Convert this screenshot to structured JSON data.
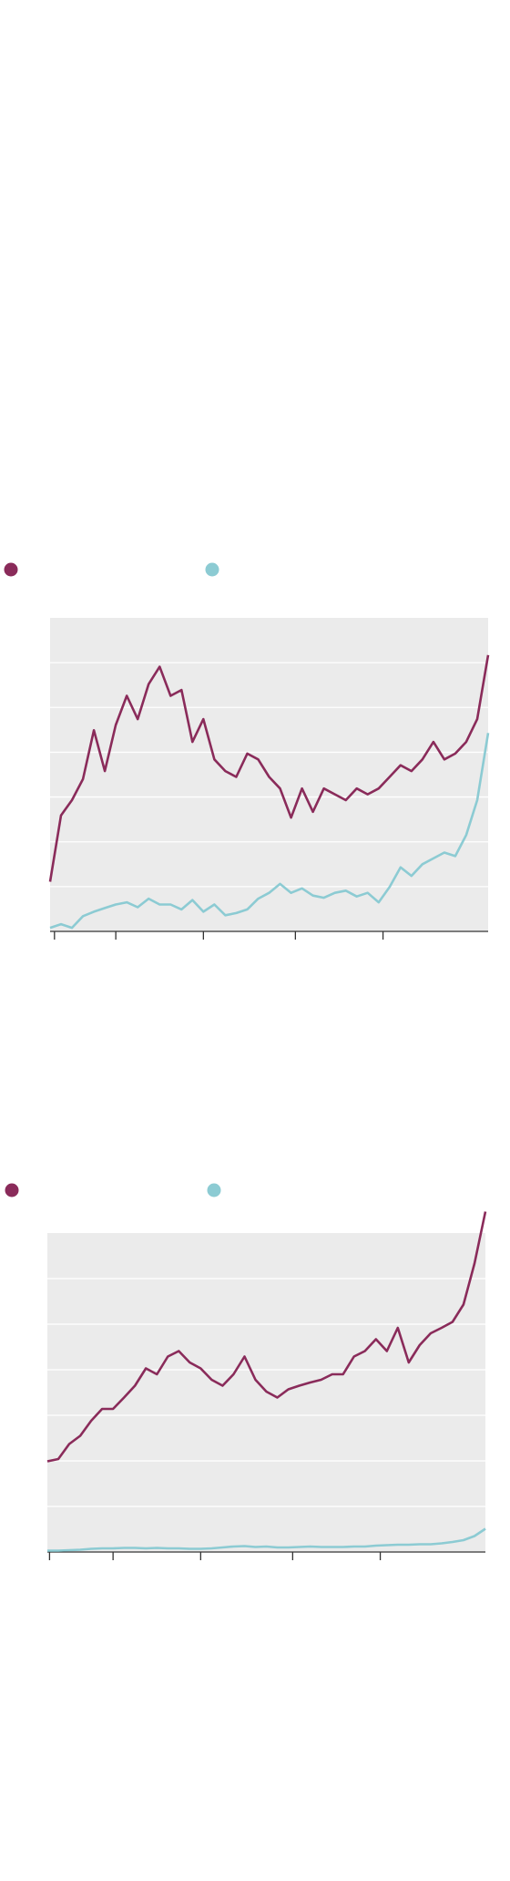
{
  "chart_data": [
    {
      "type": "line",
      "grid": true,
      "x": [
        0,
        2.5,
        5,
        7.5,
        10,
        12.5,
        15,
        17.5,
        20,
        22.5,
        25,
        27.5,
        30,
        32.5,
        35,
        37.5,
        40,
        42.5,
        45,
        47.5,
        50,
        52.5,
        55,
        57.5,
        60,
        62.5,
        65,
        67.5,
        70,
        72.5,
        75,
        77.5,
        80,
        82.5,
        85,
        87.5,
        90,
        92.5,
        95,
        97.5,
        100
      ],
      "xlim": [
        0,
        100
      ],
      "xticks": [
        1,
        15,
        35,
        56,
        76
      ],
      "ylim": [
        0,
        7
      ],
      "yticks": [
        0,
        1,
        2,
        3,
        4,
        5,
        6
      ],
      "series": [
        {
          "color": "#8a2b5a",
          "values": [
            1.11,
            2.59,
            2.93,
            3.4,
            4.49,
            3.58,
            4.61,
            5.26,
            4.74,
            5.52,
            5.91,
            5.26,
            5.39,
            4.23,
            4.74,
            3.84,
            3.58,
            3.45,
            3.97,
            3.84,
            3.45,
            3.19,
            2.54,
            3.19,
            2.67,
            3.19,
            3.06,
            2.93,
            3.19,
            3.06,
            3.19,
            3.45,
            3.71,
            3.58,
            3.84,
            4.23,
            3.84,
            3.97,
            4.23,
            4.74,
            6.17
          ]
        },
        {
          "color": "#8ccbd3",
          "values": [
            0.08,
            0.16,
            0.08,
            0.34,
            0.44,
            0.52,
            0.6,
            0.65,
            0.54,
            0.73,
            0.6,
            0.6,
            0.49,
            0.7,
            0.44,
            0.6,
            0.36,
            0.41,
            0.49,
            0.73,
            0.86,
            1.06,
            0.86,
            0.96,
            0.8,
            0.75,
            0.86,
            0.91,
            0.78,
            0.86,
            0.65,
            0.99,
            1.43,
            1.24,
            1.5,
            1.63,
            1.76,
            1.68,
            2.15,
            2.93,
            4.43
          ]
        }
      ]
    },
    {
      "type": "line",
      "grid": true,
      "x": [
        0,
        2.5,
        5,
        7.5,
        10,
        12.5,
        15,
        17.5,
        20,
        22.5,
        25,
        27.5,
        30,
        32.5,
        35,
        37.5,
        40,
        42.5,
        45,
        47.5,
        50,
        52.5,
        55,
        57.5,
        60,
        62.5,
        65,
        67.5,
        70,
        72.5,
        75,
        77.5,
        80,
        82.5,
        85,
        87.5,
        90,
        92.5,
        95,
        97.5,
        100
      ],
      "xlim": [
        0,
        100
      ],
      "xticks": [
        0.5,
        15,
        35,
        56,
        76
      ],
      "ylim": [
        0,
        7
      ],
      "yticks": [
        0,
        1,
        2,
        3,
        4,
        5,
        6
      ],
      "series": [
        {
          "color": "#8a2b5a",
          "values": [
            1.99,
            2.04,
            2.37,
            2.55,
            2.88,
            3.14,
            3.14,
            3.39,
            3.65,
            4.03,
            3.9,
            4.29,
            4.41,
            4.16,
            4.03,
            3.78,
            3.65,
            3.9,
            4.29,
            3.78,
            3.52,
            3.39,
            3.57,
            3.65,
            3.72,
            3.78,
            3.9,
            3.9,
            4.29,
            4.41,
            4.67,
            4.41,
            4.92,
            4.16,
            4.54,
            4.8,
            4.92,
            5.05,
            5.43,
            6.33,
            7.47
          ]
        },
        {
          "color": "#8ccbd3",
          "values": [
            0.03,
            0.03,
            0.04,
            0.05,
            0.07,
            0.08,
            0.08,
            0.09,
            0.09,
            0.08,
            0.09,
            0.08,
            0.08,
            0.07,
            0.07,
            0.08,
            0.1,
            0.12,
            0.13,
            0.11,
            0.12,
            0.1,
            0.1,
            0.11,
            0.12,
            0.11,
            0.11,
            0.11,
            0.12,
            0.12,
            0.14,
            0.15,
            0.16,
            0.16,
            0.17,
            0.17,
            0.19,
            0.22,
            0.26,
            0.35,
            0.51
          ]
        }
      ]
    }
  ]
}
